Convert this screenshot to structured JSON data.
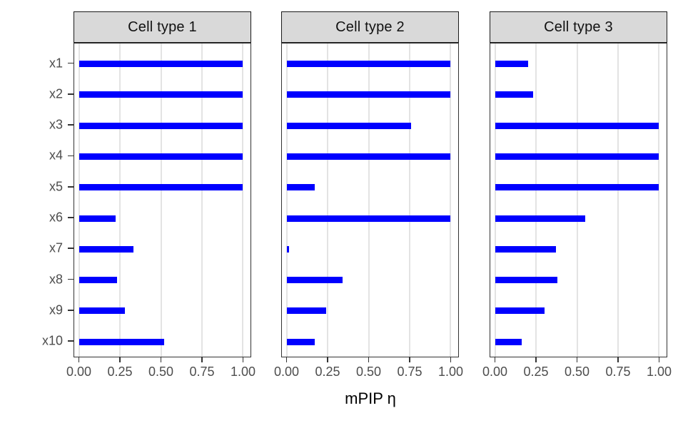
{
  "chart_data": {
    "type": "bar",
    "orientation": "horizontal",
    "title": "",
    "xlabel": "mPIP η",
    "ylabel": "",
    "categories": [
      "x1",
      "x2",
      "x3",
      "x4",
      "x5",
      "x6",
      "x7",
      "x8",
      "x9",
      "x10"
    ],
    "x_tick_labels": [
      "0.00",
      "0.25",
      "0.50",
      "0.75",
      "1.00"
    ],
    "x_tick_values": [
      0,
      0.25,
      0.5,
      0.75,
      1.0
    ],
    "xlim": [
      0,
      1
    ],
    "grid": "vertical-major-only",
    "legend_position": "none",
    "faceted": true,
    "series": [
      {
        "name": "Cell type 1",
        "values": [
          1.0,
          1.0,
          1.0,
          1.0,
          1.0,
          0.22,
          0.33,
          0.23,
          0.28,
          0.52
        ]
      },
      {
        "name": "Cell type 2",
        "values": [
          1.0,
          1.0,
          0.76,
          1.0,
          0.17,
          1.0,
          0.01,
          0.34,
          0.24,
          0.17
        ]
      },
      {
        "name": "Cell type 3",
        "values": [
          0.2,
          0.23,
          1.0,
          1.0,
          1.0,
          0.55,
          0.37,
          0.38,
          0.3,
          0.16
        ]
      }
    ]
  },
  "style": {
    "bar_color": "#0000FF",
    "strip_fill": "#D9D9D9",
    "strip_border": "#1A1A1A",
    "panel_border": "#333333",
    "grid_color": "#E3E3E3",
    "axis_text_color": "#4D4D4D",
    "tick_color": "#333333",
    "background": "#FFFFFF"
  }
}
